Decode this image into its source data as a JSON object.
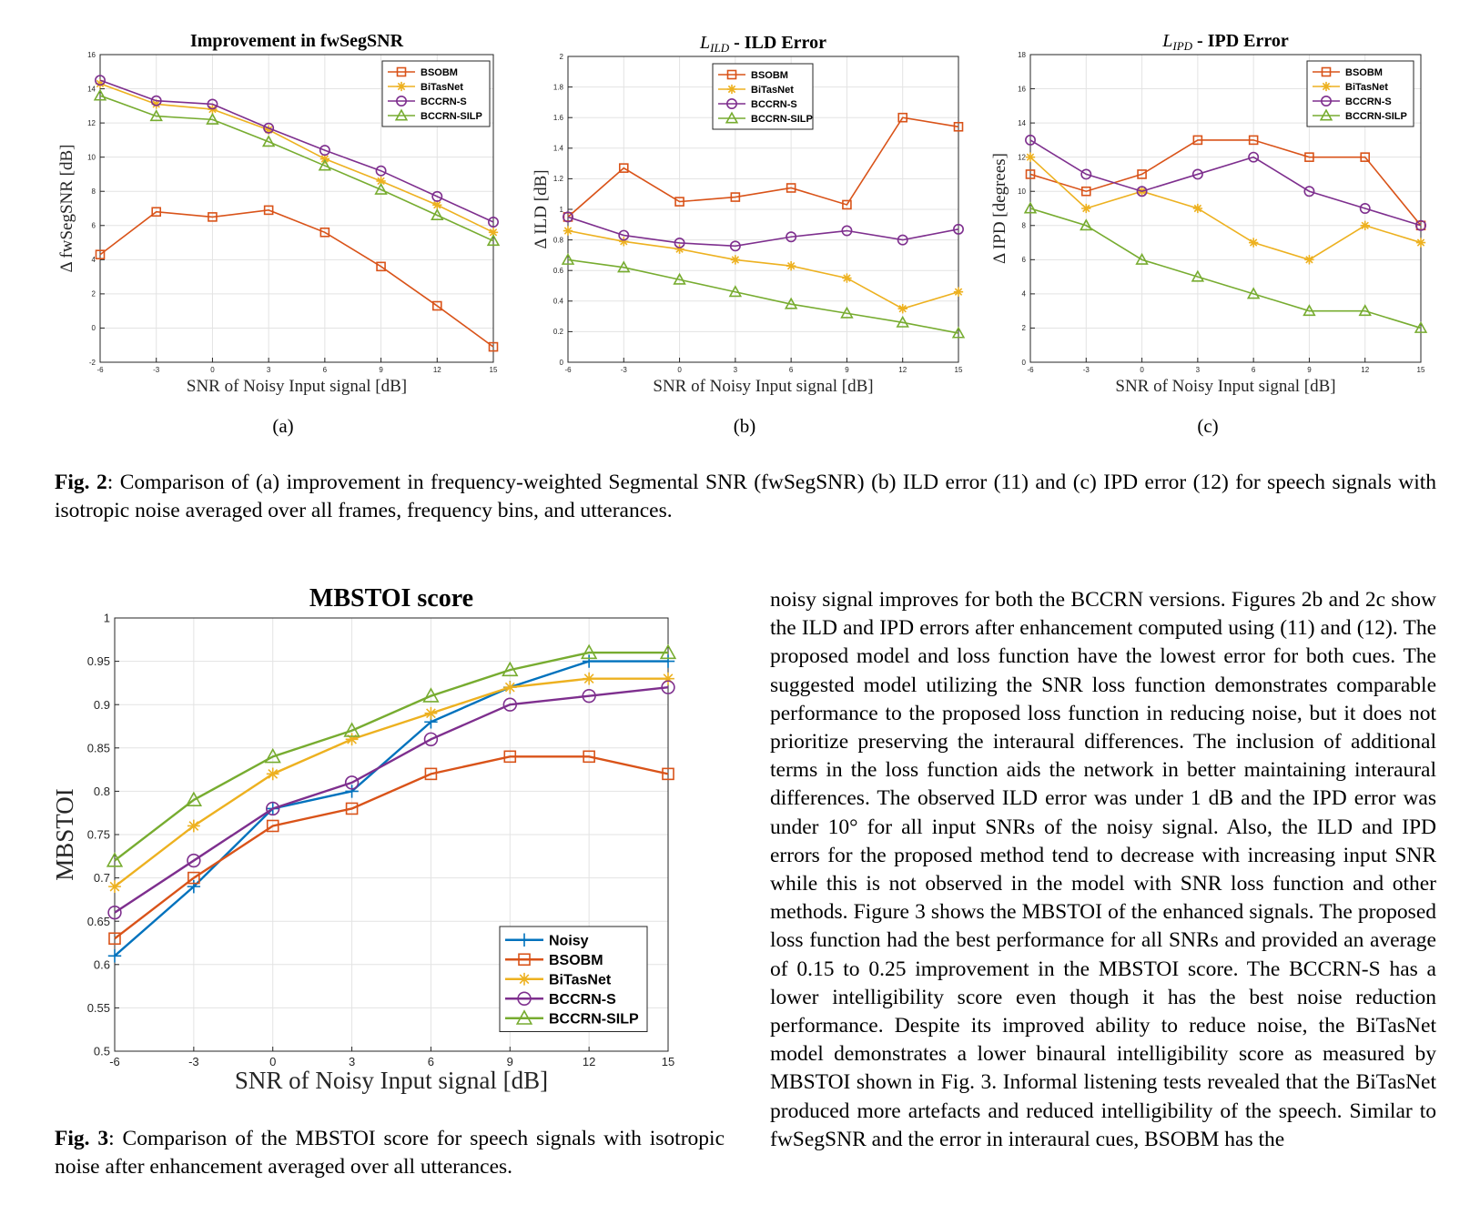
{
  "colors": {
    "Noisy": "#0072bd",
    "BSOBM": "#d95319",
    "BiTasNet": "#edb120",
    "BCCRN-S": "#7e2f8e",
    "BCCRN-SILP": "#77ac30"
  },
  "subfigure_labels": [
    "(a)",
    "(b)",
    "(c)"
  ],
  "fig2_caption": {
    "label": "Fig. 2",
    "text": ": Comparison of (a) improvement in frequency-weighted Segmental SNR (fwSegSNR) (b) ILD error (11) and (c) IPD error (12) for speech signals with isotropic noise averaged over all frames, frequency bins, and utterances."
  },
  "fig3_caption": {
    "label": "Fig. 3",
    "text": ": Comparison of the MBSTOI score for speech signals with isotropic noise after enhancement averaged over all utterances."
  },
  "body_text": "noisy signal improves for both the BCCRN versions. Figures 2b and 2c show the ILD and IPD errors after enhancement computed using (11) and (12). The proposed model and loss function have the lowest error for both cues. The suggested model utilizing the SNR loss function demonstrates comparable performance to the proposed loss function in reducing noise, but it does not prioritize preserving the interaural differences. The inclusion of additional terms in the loss function aids the network in better maintaining interaural differences. The observed ILD error was under 1 dB and the IPD error was under 10° for all input SNRs of the noisy signal. Also, the ILD and IPD errors for the proposed method tend to decrease with increasing input SNR while this is not observed in the model with SNR loss function and other methods. Figure 3 shows the MBSTOI of the enhanced signals. The proposed loss function had the best performance for all SNRs and provided an average of 0.15 to 0.25 improvement in the MBSTOI score. The BCCRN-S has a lower intelligibility score even though it has the best noise reduction performance. Despite its improved ability to reduce noise, the BiTasNet model demonstrates a lower binaural intelligibility score as measured by MBSTOI shown in Fig. 3. Informal listening tests revealed that the BiTasNet produced more artefacts and reduced intelligibility of the speech. Similar to fwSegSNR and the error in interaural cues, BSOBM has the",
  "chart_data": [
    {
      "id": "fwsegsnr",
      "type": "line",
      "title": "Improvement in fwSegSNR",
      "xlabel": "SNR of Noisy Input signal [dB]",
      "ylabel": "Δ fwSegSNR [dB]",
      "x": [
        -6,
        -3,
        0,
        3,
        6,
        9,
        12,
        15
      ],
      "xlim": [
        -6,
        15
      ],
      "ylim": [
        -2,
        16
      ],
      "yticks": [
        -2,
        0,
        2,
        4,
        6,
        8,
        10,
        12,
        14,
        16
      ],
      "grid": true,
      "legend": "top-right",
      "series": [
        {
          "name": "BSOBM",
          "marker": "square",
          "values": [
            4.3,
            6.8,
            6.5,
            6.9,
            5.6,
            3.6,
            1.3,
            -1.1
          ]
        },
        {
          "name": "BiTasNet",
          "marker": "star",
          "values": [
            14.3,
            13.1,
            12.8,
            11.6,
            9.9,
            8.6,
            7.2,
            5.6
          ]
        },
        {
          "name": "BCCRN-S",
          "marker": "circle",
          "values": [
            14.5,
            13.3,
            13.1,
            11.7,
            10.4,
            9.2,
            7.7,
            6.2
          ]
        },
        {
          "name": "BCCRN-SILP",
          "marker": "triangle",
          "values": [
            13.6,
            12.4,
            12.2,
            10.9,
            9.5,
            8.1,
            6.6,
            5.1
          ]
        }
      ]
    },
    {
      "id": "ild",
      "type": "line",
      "title_script": "L",
      "title_sub": "ILD",
      "title_rest": " - ILD Error",
      "xlabel": "SNR of Noisy Input signal [dB]",
      "ylabel": "Δ ILD [dB]",
      "x": [
        -6,
        -3,
        0,
        3,
        6,
        9,
        12,
        15
      ],
      "xlim": [
        -6,
        15
      ],
      "ylim": [
        0,
        2
      ],
      "yticks": [
        0,
        0.2,
        0.4,
        0.6,
        0.8,
        1,
        1.2,
        1.4,
        1.6,
        1.8,
        2
      ],
      "grid": true,
      "legend": "top-left",
      "series": [
        {
          "name": "BSOBM",
          "marker": "square",
          "values": [
            0.95,
            1.27,
            1.05,
            1.08,
            1.14,
            1.03,
            1.6,
            1.54
          ]
        },
        {
          "name": "BiTasNet",
          "marker": "star",
          "values": [
            0.86,
            0.79,
            0.74,
            0.67,
            0.63,
            0.55,
            0.35,
            0.46
          ]
        },
        {
          "name": "BCCRN-S",
          "marker": "circle",
          "values": [
            0.95,
            0.83,
            0.78,
            0.76,
            0.82,
            0.86,
            0.8,
            0.87
          ]
        },
        {
          "name": "BCCRN-SILP",
          "marker": "triangle",
          "values": [
            0.67,
            0.62,
            0.54,
            0.46,
            0.38,
            0.32,
            0.26,
            0.19
          ]
        }
      ]
    },
    {
      "id": "ipd",
      "type": "line",
      "title_script": "L",
      "title_sub": "IPD",
      "title_rest": " - IPD Error",
      "xlabel": "SNR of Noisy Input signal [dB]",
      "ylabel": "Δ IPD [degrees]",
      "x": [
        -6,
        -3,
        0,
        3,
        6,
        9,
        12,
        15
      ],
      "xlim": [
        -6,
        15
      ],
      "ylim": [
        0,
        18
      ],
      "yticks": [
        0,
        2,
        4,
        6,
        8,
        10,
        12,
        14,
        16,
        18
      ],
      "grid": true,
      "legend": "top-right",
      "series": [
        {
          "name": "BSOBM",
          "marker": "square",
          "values": [
            11,
            10,
            11,
            13,
            13,
            12,
            12,
            8
          ]
        },
        {
          "name": "BiTasNet",
          "marker": "star",
          "values": [
            12,
            9,
            10,
            9,
            7,
            6,
            8,
            7
          ]
        },
        {
          "name": "BCCRN-S",
          "marker": "circle",
          "values": [
            13,
            11,
            10,
            11,
            12,
            10,
            9,
            8
          ]
        },
        {
          "name": "BCCRN-SILP",
          "marker": "triangle",
          "values": [
            9,
            8,
            6,
            5,
            4,
            3,
            3,
            2
          ]
        }
      ]
    },
    {
      "id": "mbstoi",
      "type": "line",
      "title": "MBSTOI score",
      "xlabel": "SNR of Noisy Input signal [dB]",
      "ylabel": "MBSTOI",
      "x": [
        -6,
        -3,
        0,
        3,
        6,
        9,
        12,
        15
      ],
      "xlim": [
        -6,
        15
      ],
      "ylim": [
        0.5,
        1
      ],
      "yticks": [
        0.5,
        0.55,
        0.6,
        0.65,
        0.7,
        0.75,
        0.8,
        0.85,
        0.9,
        0.95,
        1
      ],
      "grid": true,
      "legend": "bottom-right",
      "series": [
        {
          "name": "Noisy",
          "marker": "plus",
          "values": [
            0.61,
            0.69,
            0.78,
            0.8,
            0.88,
            0.92,
            0.95,
            0.95
          ]
        },
        {
          "name": "BSOBM",
          "marker": "square",
          "values": [
            0.63,
            0.7,
            0.76,
            0.78,
            0.82,
            0.84,
            0.84,
            0.82
          ]
        },
        {
          "name": "BiTasNet",
          "marker": "star",
          "values": [
            0.69,
            0.76,
            0.82,
            0.86,
            0.89,
            0.92,
            0.93,
            0.93
          ]
        },
        {
          "name": "BCCRN-S",
          "marker": "circle",
          "values": [
            0.66,
            0.72,
            0.78,
            0.81,
            0.86,
            0.9,
            0.91,
            0.92
          ]
        },
        {
          "name": "BCCRN-SILP",
          "marker": "triangle",
          "values": [
            0.72,
            0.79,
            0.84,
            0.87,
            0.91,
            0.94,
            0.96,
            0.96
          ]
        }
      ]
    }
  ]
}
